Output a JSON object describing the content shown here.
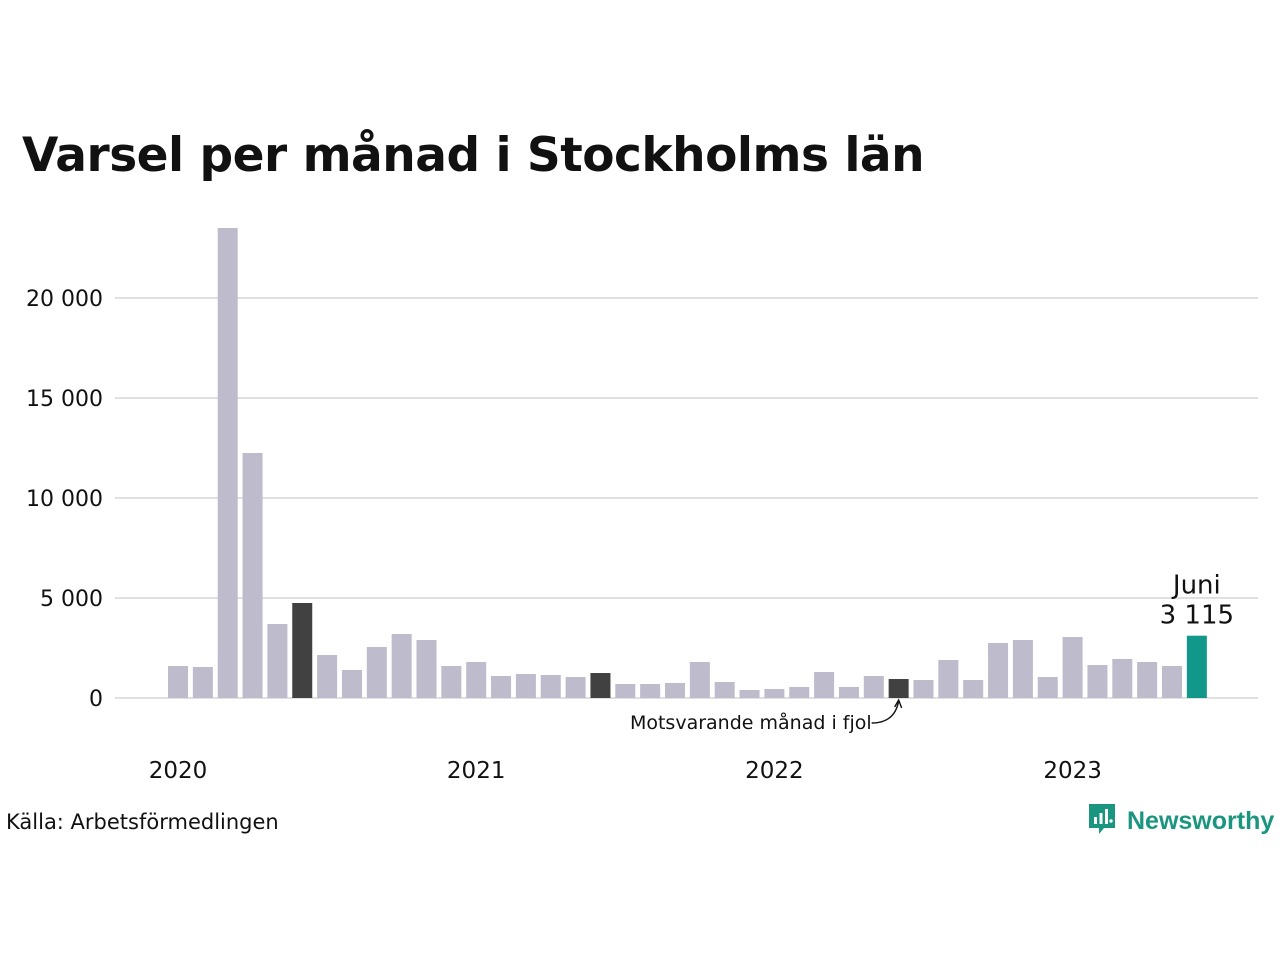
{
  "title": "Varsel per månad i Stockholms län",
  "source": "Källa: Arbetsförmedlingen",
  "brand": {
    "name": "Newsworthy",
    "logo_icon": "newsworthy-logo-icon"
  },
  "colors": {
    "default_bar": "#bdbbcc",
    "comparison_bar": "#414141",
    "latest_bar": "#12988a",
    "grid": "#e0e0e0",
    "text": "#111111"
  },
  "chart_data": {
    "type": "bar",
    "title": "Varsel per månad i Stockholms län",
    "xlabel": "",
    "ylabel": "",
    "ylim": [
      0,
      24000
    ],
    "grid": true,
    "yticks": [
      0,
      5000,
      10000,
      15000,
      20000
    ],
    "ytick_labels": [
      "0",
      "5 000",
      "10 000",
      "15 000",
      "20 000"
    ],
    "xtick_labels": [
      {
        "label": "2020",
        "index": 0
      },
      {
        "label": "2021",
        "index": 12
      },
      {
        "label": "2022",
        "index": 24
      },
      {
        "label": "2023",
        "index": 36
      }
    ],
    "categories": [
      "2020-01",
      "2020-02",
      "2020-03",
      "2020-04",
      "2020-05",
      "2020-06",
      "2020-07",
      "2020-08",
      "2020-09",
      "2020-10",
      "2020-11",
      "2020-12",
      "2021-01",
      "2021-02",
      "2021-03",
      "2021-04",
      "2021-05",
      "2021-06",
      "2021-07",
      "2021-08",
      "2021-09",
      "2021-10",
      "2021-11",
      "2021-12",
      "2022-01",
      "2022-02",
      "2022-03",
      "2022-04",
      "2022-05",
      "2022-06",
      "2022-07",
      "2022-08",
      "2022-09",
      "2022-10",
      "2022-11",
      "2022-12",
      "2023-01",
      "2023-02",
      "2023-03",
      "2023-04",
      "2023-05",
      "2023-06"
    ],
    "values": [
      1600,
      1550,
      23500,
      12250,
      3700,
      4750,
      2150,
      1400,
      2550,
      3200,
      2900,
      1600,
      1800,
      1100,
      1200,
      1150,
      1050,
      1250,
      700,
      700,
      750,
      1800,
      800,
      400,
      450,
      550,
      1300,
      550,
      1100,
      950,
      900,
      1900,
      900,
      2750,
      2900,
      1050,
      3050,
      1650,
      1950,
      1800,
      1600,
      3115
    ],
    "highlight": {
      "comparison": [
        "2020-06",
        "2021-06",
        "2022-06"
      ],
      "latest": "2023-06"
    },
    "annotations": {
      "latest_month": "Juni",
      "latest_value": "3 115",
      "comparison_note": "Motsvarande månad i fjol"
    }
  }
}
